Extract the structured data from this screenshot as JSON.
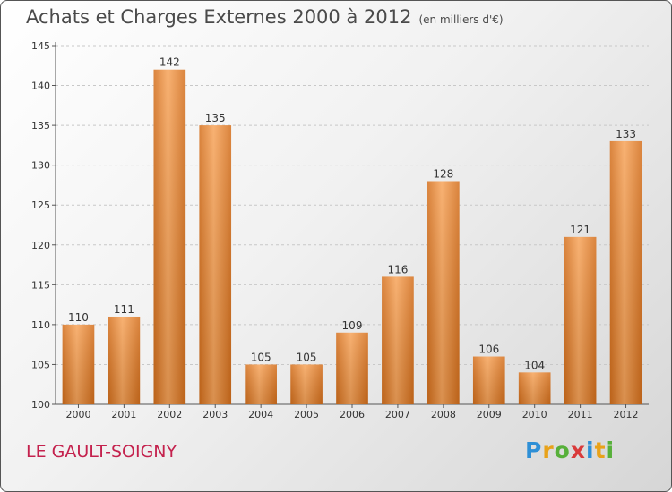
{
  "header": {
    "title": "Achats et Charges Externes 2000 à 2012",
    "subtitle": "(en milliers d'€)"
  },
  "footer": {
    "city": "LE GAULT-SOIGNY",
    "logo_letters": [
      "P",
      "r",
      "o",
      "x",
      "i",
      "t",
      "i"
    ],
    "logo_colors": [
      "#2e8fd6",
      "#e8a21a",
      "#57b03a",
      "#d93a3a",
      "#2e8fd6",
      "#e8a21a",
      "#57b03a"
    ]
  },
  "chart_data": {
    "type": "bar",
    "title": "Achats et Charges Externes 2000 à 2012",
    "subtitle": "(en milliers d'€)",
    "categories": [
      "2000",
      "2001",
      "2002",
      "2003",
      "2004",
      "2005",
      "2006",
      "2007",
      "2008",
      "2009",
      "2010",
      "2011",
      "2012"
    ],
    "values": [
      110,
      111,
      142,
      135,
      105,
      105,
      109,
      116,
      128,
      106,
      104,
      121,
      133
    ],
    "ylim": [
      100,
      145
    ],
    "yticks": [
      100,
      105,
      110,
      115,
      120,
      125,
      130,
      135,
      140,
      145
    ],
    "grid": true,
    "legend": "none",
    "bar_color_light": "#f7a45a",
    "bar_color_dark": "#d46f1c"
  }
}
